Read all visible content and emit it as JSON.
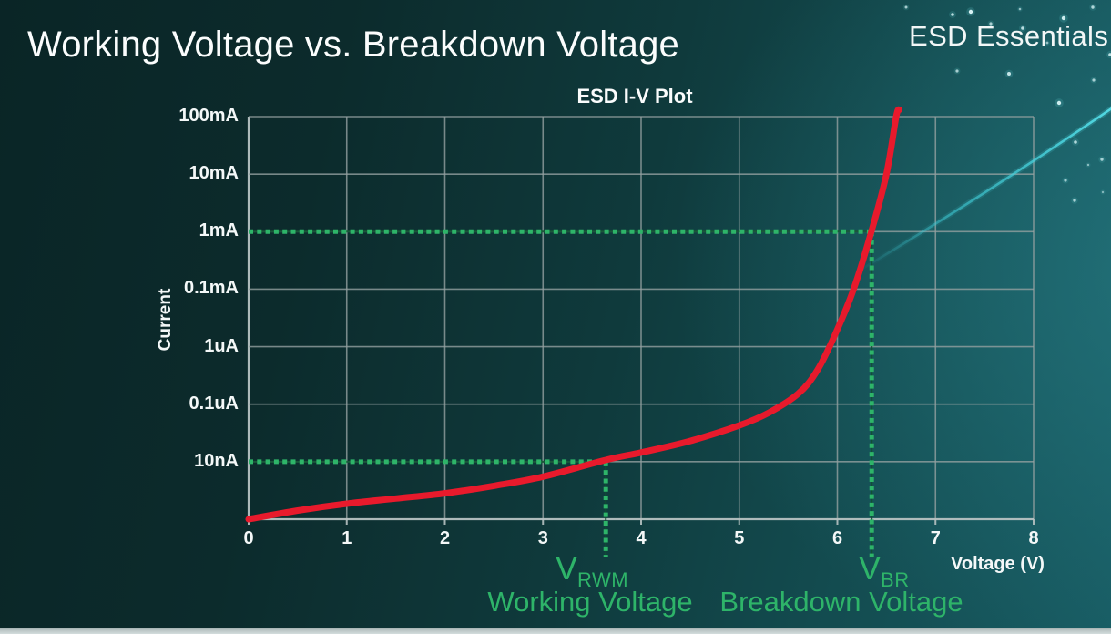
{
  "slide": {
    "title": "Working Voltage vs. Breakdown Voltage",
    "brand": "ESD Essentials"
  },
  "chart_data": {
    "type": "line",
    "title": "ESD I-V Plot",
    "xlabel": "Voltage (V)",
    "ylabel": "Current",
    "x_ticks": [
      "0",
      "1",
      "2",
      "3",
      "4",
      "5",
      "6",
      "7",
      "8"
    ],
    "x_range": [
      0,
      8
    ],
    "y_tick_labels": [
      "100mA",
      "10mA",
      "1mA",
      "0.1mA",
      "1uA",
      "0.1uA",
      "10nA"
    ],
    "y_scale": "logarithmic, one decade per gridline, 100mA at top",
    "grid": true,
    "legend": "none",
    "series": [
      {
        "name": "ESD device I-V curve",
        "color": "#e81a2c",
        "points_voltage_vs_decaderow": [
          [
            0,
            7
          ],
          [
            0.5,
            6.85
          ],
          [
            1,
            6.73
          ],
          [
            1.5,
            6.64
          ],
          [
            2,
            6.55
          ],
          [
            2.5,
            6.42
          ],
          [
            3,
            6.26
          ],
          [
            3.64,
            5.97
          ],
          [
            4,
            5.84
          ],
          [
            4.5,
            5.64
          ],
          [
            5,
            5.37
          ],
          [
            5.3,
            5.15
          ],
          [
            5.6,
            4.82
          ],
          [
            5.8,
            4.4
          ],
          [
            6.0,
            3.7
          ],
          [
            6.17,
            2.98
          ],
          [
            6.35,
            1.98
          ],
          [
            6.5,
            1.0
          ],
          [
            6.6,
            0
          ],
          [
            6.63,
            -0.12
          ]
        ]
      }
    ],
    "annotations": [
      {
        "symbol": "V",
        "subscript": "RWM",
        "caption": "Working Voltage",
        "voltage": 3.64,
        "current_level": "10nA",
        "color": "#2eb469"
      },
      {
        "symbol": "V",
        "subscript": "BR",
        "caption": "Breakdown Voltage",
        "voltage": 6.35,
        "current_level": "1mA",
        "color": "#2eb469"
      }
    ]
  }
}
